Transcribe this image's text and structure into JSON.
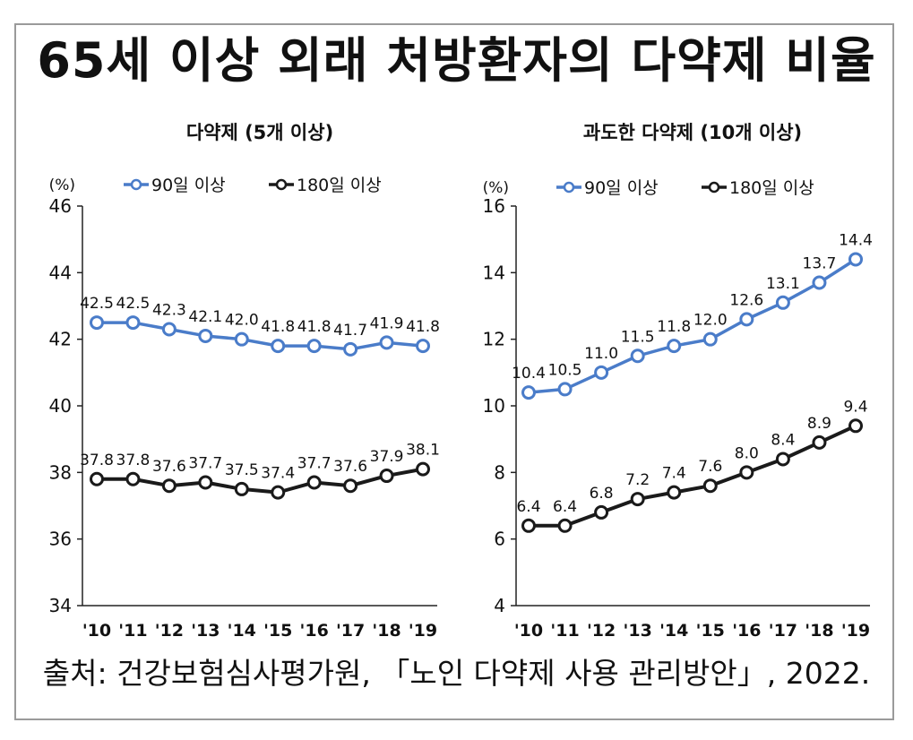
{
  "title": "65세 이상 외래 처방환자의 다약제 비율",
  "source": "출처: 건강보험심사평가원, 「노인 다약제 사용 관리방안」, 2022.",
  "colors": {
    "series_90": "#4a7cc9",
    "series_180": "#1a1a1a"
  },
  "chart_data": [
    {
      "type": "line",
      "title": "다약제 (5개 이상)",
      "unit": "(%)",
      "categories": [
        "'10",
        "'11",
        "'12",
        "'13",
        "'14",
        "'15",
        "'16",
        "'17",
        "'18",
        "'19"
      ],
      "ylim": [
        34,
        46
      ],
      "yticks": [
        34,
        36,
        38,
        40,
        42,
        44,
        46
      ],
      "legend": "top",
      "series": [
        {
          "name": "90일 이상",
          "values": [
            42.5,
            42.5,
            42.3,
            42.1,
            42.0,
            41.8,
            41.8,
            41.7,
            41.9,
            41.8
          ],
          "labels": [
            "42.5",
            "42.5",
            "42.3",
            "42.1",
            "42.0",
            "41.8",
            "41.8",
            "41.7",
            "41.9",
            "41.8"
          ]
        },
        {
          "name": "180일 이상",
          "values": [
            37.8,
            37.8,
            37.6,
            37.7,
            37.5,
            37.4,
            37.7,
            37.6,
            37.9,
            38.1
          ],
          "labels": [
            "37.8",
            "37.8",
            "37.6",
            "37.7",
            "37.5",
            "37.4",
            "37.7",
            "37.6",
            "37.9",
            "38.1"
          ]
        }
      ]
    },
    {
      "type": "line",
      "title": "과도한 다약제 (10개 이상)",
      "unit": "(%)",
      "categories": [
        "'10",
        "'11",
        "'12",
        "'13",
        "'14",
        "'15",
        "'16",
        "'17",
        "'18",
        "'19"
      ],
      "ylim": [
        4,
        16
      ],
      "yticks": [
        4,
        6,
        8,
        10,
        12,
        14,
        16
      ],
      "legend": "top",
      "series": [
        {
          "name": "90일 이상",
          "values": [
            10.4,
            10.5,
            11.0,
            11.5,
            11.8,
            12.0,
            12.6,
            13.1,
            13.7,
            14.4
          ],
          "labels": [
            "10.4",
            "10.5",
            "11.0",
            "11.5",
            "11.8",
            "12.0",
            "12.6",
            "13.1",
            "13.7",
            "14.4"
          ]
        },
        {
          "name": "180일 이상",
          "values": [
            6.4,
            6.4,
            6.8,
            7.2,
            7.4,
            7.6,
            8.0,
            8.4,
            8.9,
            9.4
          ],
          "labels": [
            "6.4",
            "6.4",
            "6.8",
            "7.2",
            "7.4",
            "7.6",
            "8.0",
            "8.4",
            "8.9",
            "9.4"
          ]
        }
      ]
    }
  ]
}
